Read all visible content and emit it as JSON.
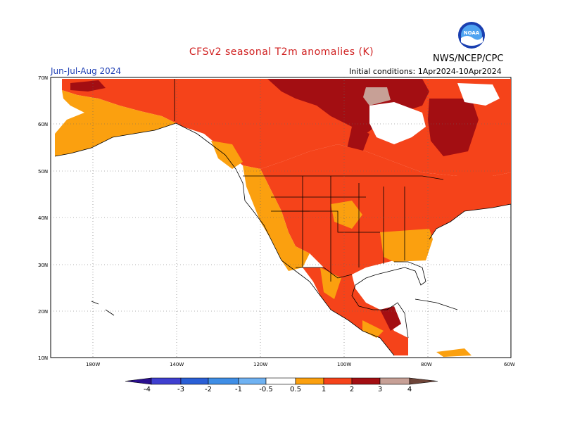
{
  "title": "CFSv2 seasonal T2m anomalies (K)",
  "agency": "NWS/NCEP/CPC",
  "logo_text": "NOAA",
  "season": "Jun-Jul-Aug 2024",
  "initial_conditions": "Initial conditions: 1Apr2024-10Apr2024",
  "map": {
    "lon_ticks": [
      "180W",
      "140W",
      "120W",
      "100W",
      "80W",
      "60W"
    ],
    "lat_ticks": [
      "70N",
      "60N",
      "50N",
      "40N",
      "30N",
      "20N",
      "10N"
    ]
  },
  "colorbar": {
    "labels": [
      "-4",
      "-3",
      "-2",
      "-1",
      "-0.5",
      "0.5",
      "1",
      "2",
      "3",
      "4"
    ],
    "colors": [
      "#2a0f8f",
      "#3f3fd0",
      "#2a5fd6",
      "#3f8ee6",
      "#6fb2f2",
      "#ffffff",
      "#fba00f",
      "#f5431a",
      "#a30e12",
      "#c7a096",
      "#6e4438"
    ]
  }
}
